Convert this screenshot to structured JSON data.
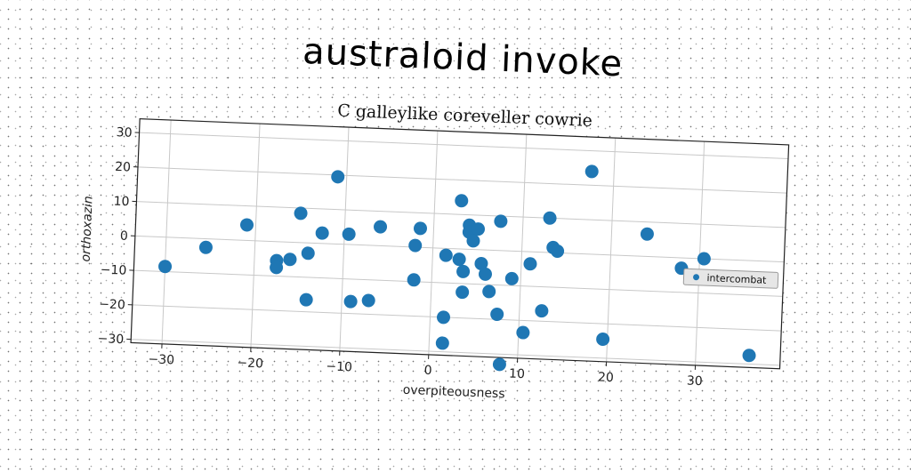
{
  "title": "australoid invoke",
  "chart_data": {
    "type": "scatter",
    "subtitle": "C galleylike coreveller cowrie",
    "xlabel": "overpiteousness",
    "ylabel": "orthoxazin",
    "xlim": [
      -33.5,
      39.5
    ],
    "ylim": [
      -31,
      34
    ],
    "xticks": [
      -30,
      -20,
      -10,
      0,
      10,
      20,
      30
    ],
    "yticks": [
      -30,
      -20,
      -10,
      0,
      10,
      20,
      30
    ],
    "grid": true,
    "legend_position": "right",
    "color": "#1f77b4",
    "series": [
      {
        "name": "intercombat",
        "points": [
          [
            -30,
            -8.5
          ],
          [
            -25.5,
            -2.5
          ],
          [
            -21,
            4.5
          ],
          [
            -17.5,
            -5.5
          ],
          [
            -17.5,
            -7.5
          ],
          [
            -16,
            -5
          ],
          [
            -15,
            8.5
          ],
          [
            -14,
            -3
          ],
          [
            -14,
            -16.5
          ],
          [
            -12.5,
            3
          ],
          [
            -11,
            19.5
          ],
          [
            -9.5,
            3
          ],
          [
            -9,
            -16.5
          ],
          [
            -7,
            -16
          ],
          [
            -6,
            5.5
          ],
          [
            -2,
            0.5
          ],
          [
            -2,
            -9.5
          ],
          [
            -1.5,
            5.5
          ],
          [
            1.5,
            -2
          ],
          [
            1.5,
            -20
          ],
          [
            1.5,
            -27.5
          ],
          [
            3,
            -3
          ],
          [
            3,
            14
          ],
          [
            3.5,
            -6.5
          ],
          [
            3.5,
            -12.5
          ],
          [
            4,
            7
          ],
          [
            4,
            5
          ],
          [
            4.5,
            2.5
          ],
          [
            5,
            6
          ],
          [
            5.5,
            -4
          ],
          [
            6,
            -7
          ],
          [
            6.5,
            -12
          ],
          [
            7.5,
            -18.5
          ],
          [
            7.5,
            8.5
          ],
          [
            8,
            -33
          ],
          [
            9,
            -8
          ],
          [
            10.5,
            -23.5
          ],
          [
            11,
            -3.5
          ],
          [
            12.5,
            -17
          ],
          [
            13,
            10
          ],
          [
            13.5,
            1.5
          ],
          [
            14,
            0.5
          ],
          [
            17.5,
            24
          ],
          [
            19.5,
            -24.5
          ],
          [
            24,
            6.5
          ],
          [
            28,
            -3
          ],
          [
            30.5,
            0
          ],
          [
            36,
            -27.5
          ]
        ]
      }
    ]
  }
}
